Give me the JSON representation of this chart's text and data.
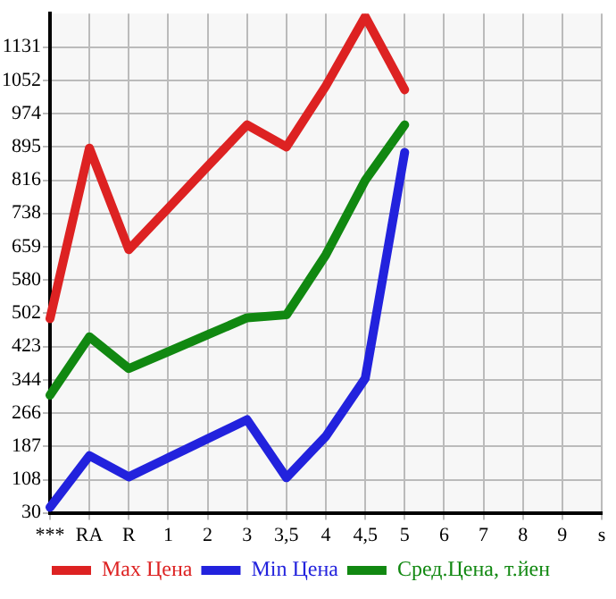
{
  "chart_data": {
    "type": "line",
    "categories": [
      "***",
      "RA",
      "R",
      "1",
      "2",
      "3",
      "3,5",
      "4",
      "4,5",
      "5",
      "6",
      "7",
      "8",
      "9",
      "s"
    ],
    "series": [
      {
        "name": "Max Цена",
        "color": "#dd2222",
        "values": [
          489,
          892,
          652,
          750,
          849,
          947,
          895,
          1039,
          1203,
          1030,
          null,
          null,
          null,
          null,
          null
        ]
      },
      {
        "name": "Min Цена",
        "color": "#2222dd",
        "values": [
          43,
          165,
          115,
          160,
          205,
          250,
          113,
          211,
          348,
          882,
          null,
          null,
          null,
          null,
          null
        ]
      },
      {
        "name": "Сред.Цена, т.йен",
        "color": "#118811",
        "values": [
          308,
          446,
          371,
          411,
          451,
          491,
          498,
          640,
          816,
          947,
          null,
          null,
          null,
          null,
          null
        ]
      }
    ],
    "ylim": [
      30,
      1210
    ],
    "yticks": [
      30,
      108,
      187,
      266,
      344,
      423,
      502,
      580,
      659,
      738,
      816,
      895,
      974,
      1052,
      1131
    ],
    "grid": true,
    "legend": "bottom",
    "marker": "none",
    "line_style": "solid"
  }
}
